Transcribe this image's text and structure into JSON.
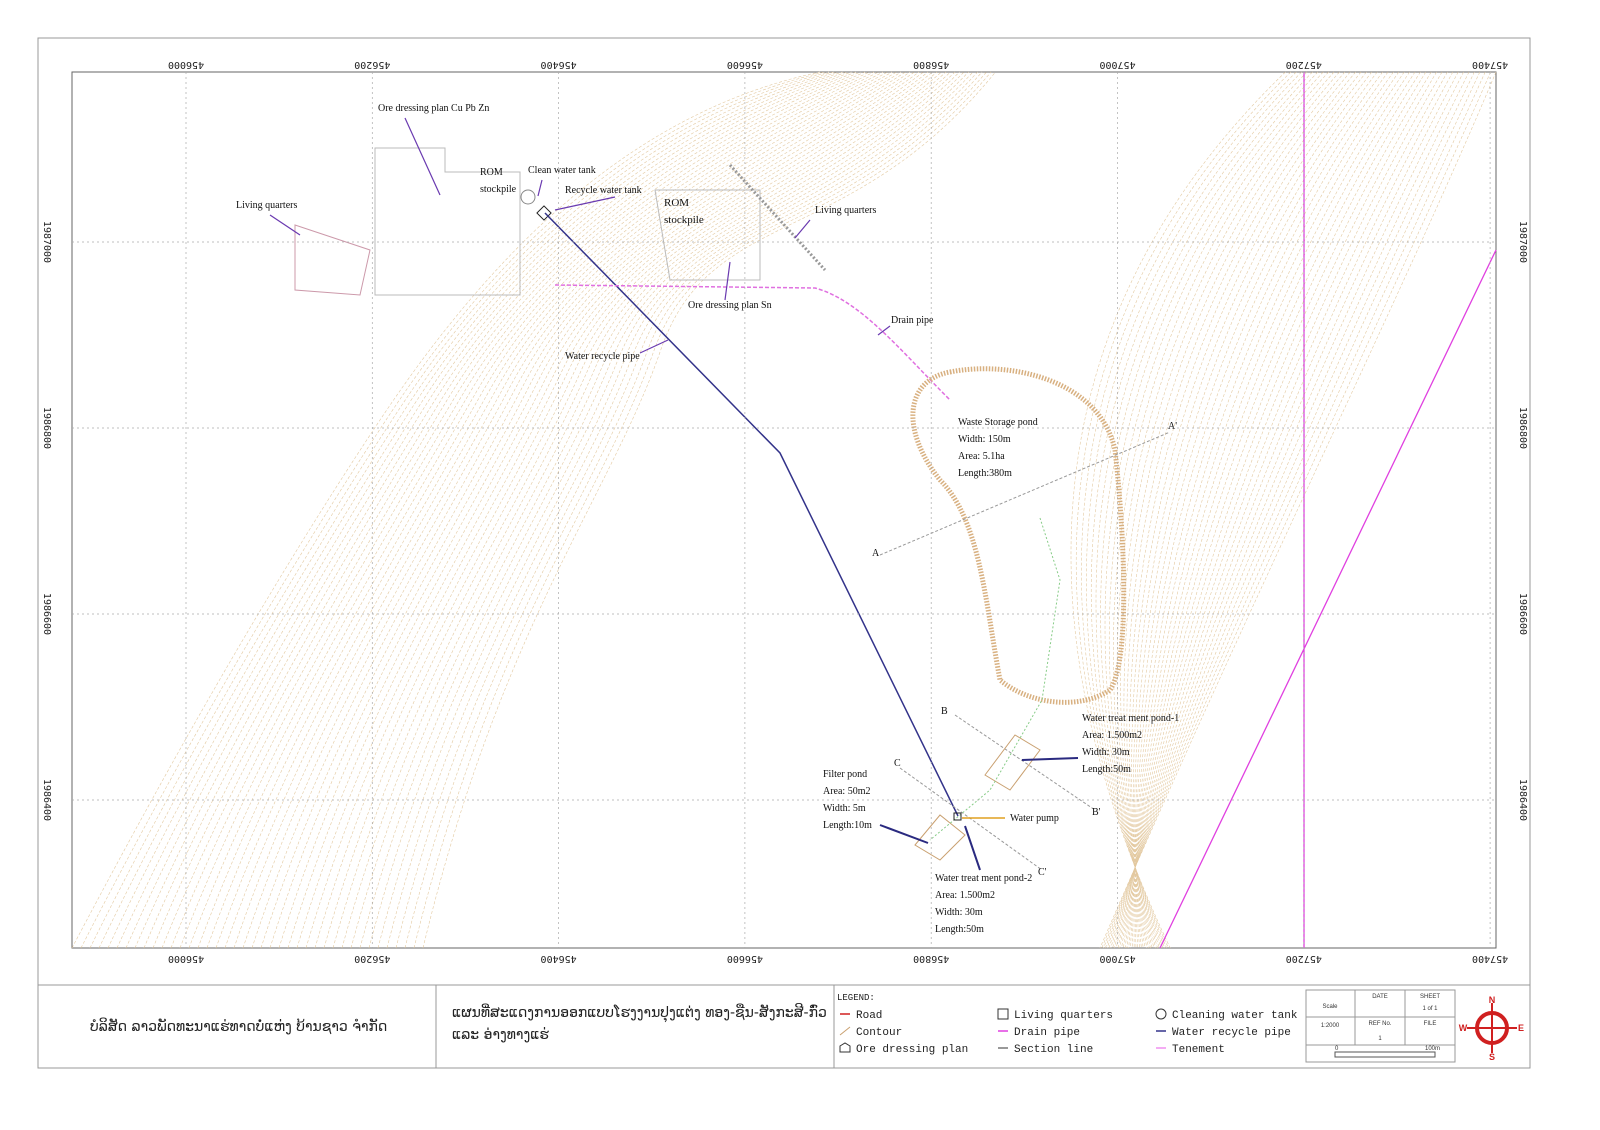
{
  "grid": {
    "eastings": [
      456000,
      456200,
      456400,
      456600,
      456800,
      457000,
      457200,
      457400
    ],
    "northings": [
      1987000,
      1986800,
      1986600,
      1986400
    ]
  },
  "annotations": [
    {
      "lines": [
        "Ore dressing plan  Cu Pb Zn"
      ]
    },
    {
      "lines": [
        "ROM",
        "stockpile"
      ]
    },
    {
      "lines": [
        "Clean water tank"
      ]
    },
    {
      "lines": [
        "Recycle water tank"
      ]
    },
    {
      "lines": [
        "ROM",
        "stockpile"
      ]
    },
    {
      "lines": [
        "Living quarters"
      ]
    },
    {
      "lines": [
        "Living quarters"
      ]
    },
    {
      "lines": [
        "Ore dressing plan Sn"
      ]
    },
    {
      "lines": [
        "Drain pipe"
      ]
    },
    {
      "lines": [
        "Water recycle pipe"
      ]
    },
    {
      "lines": [
        "Waste Storage pond",
        "Width: 150m",
        "Area: 5.1ha",
        "Length:380m"
      ]
    },
    {
      "lines": [
        "A'"
      ]
    },
    {
      "lines": [
        "A"
      ]
    },
    {
      "lines": [
        "B"
      ]
    },
    {
      "lines": [
        "B'"
      ]
    },
    {
      "lines": [
        "C"
      ]
    },
    {
      "lines": [
        "C'"
      ]
    },
    {
      "lines": [
        "Water treat ment pond-1",
        "Area: 1.500m2",
        "Width: 30m",
        "Length:50m"
      ]
    },
    {
      "lines": [
        "Filter pond",
        "Area: 50m2",
        "Width: 5m",
        "Length:10m"
      ]
    },
    {
      "lines": [
        "Water pump"
      ]
    },
    {
      "lines": [
        "Water treat ment pond-2",
        "Area: 1.500m2",
        "Width: 30m",
        "Length:50m"
      ]
    }
  ],
  "title_block": {
    "company": "ບໍລິສັດ ລາວພັດທະນາແຮ່ທາດບໍ່ແຫ່ງ ບ້ານຊາວ ຈຳກັດ",
    "title": [
      "ແຜນທີ່ສະແດງການອອກແບບໂຮງງານປຸງແຕ່ງ ທອງ-ຊືນ-ສັງກະສີ-ກົ່ວ",
      "ແລະ ອ່າງທາງແຮ່"
    ],
    "legend": {
      "heading": "LEGEND:",
      "items": [
        "Road",
        "Contour",
        "Ore dressing plan",
        "Living quarters",
        "Drain pipe",
        "Section line",
        "Cleaning water tank",
        "Water recycle pipe",
        "Tenement"
      ]
    },
    "sheet": {
      "scale_label": "Scale",
      "scale": "1:2000",
      "date_label": "DATE",
      "sheet_label": "SHEET",
      "sheet": "1 of 1",
      "ref_label": "REF No.",
      "ref": "1",
      "file_label": "FILE"
    },
    "scale_bar": [
      "0",
      "100m"
    ],
    "compass": [
      "N",
      "E",
      "S",
      "W"
    ]
  }
}
